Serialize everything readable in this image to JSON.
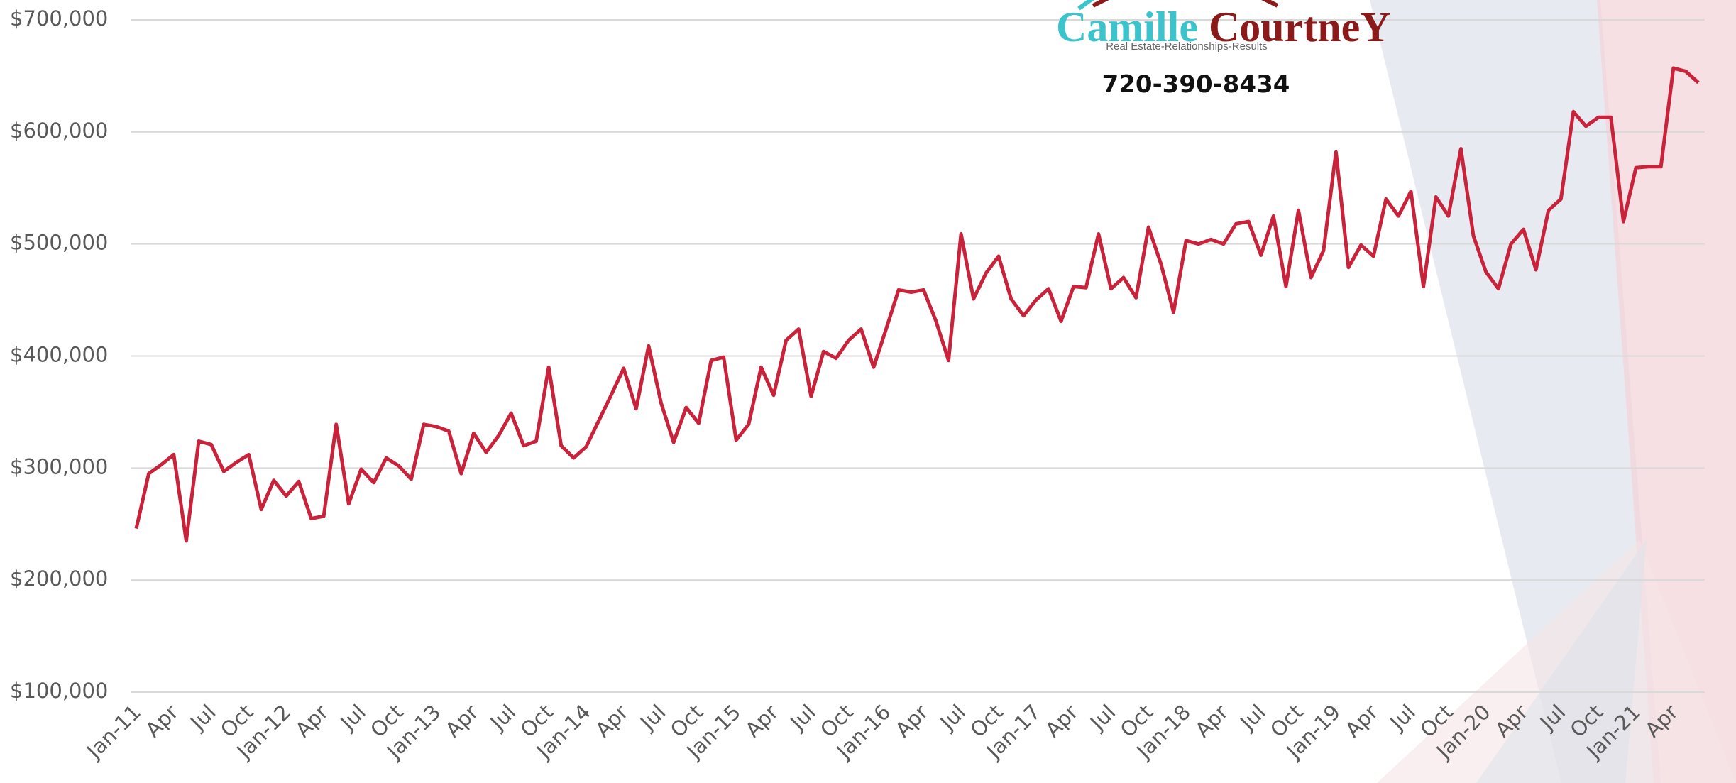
{
  "logo": {
    "name_first": "Camille",
    "name_last": "CourtneY",
    "tagline": "Real Estate-Relationships-Results",
    "phone": "720-390-8434"
  },
  "chart_data": {
    "type": "line",
    "color": "#c8233a",
    "grid": true,
    "ylim": [
      100000,
      700000
    ],
    "yticks": [
      {
        "value": 100000,
        "label": "$100,000"
      },
      {
        "value": 200000,
        "label": "$200,000"
      },
      {
        "value": 300000,
        "label": "$300,000"
      },
      {
        "value": 400000,
        "label": "$400,000"
      },
      {
        "value": 500000,
        "label": "$500,000"
      },
      {
        "value": 600000,
        "label": "$600,000"
      },
      {
        "value": 700000,
        "label": "$700,000"
      }
    ],
    "categories": [
      "Jan-11",
      null,
      null,
      "Apr",
      null,
      null,
      "Jul",
      null,
      null,
      "Oct",
      null,
      null,
      "Jan-12",
      null,
      null,
      "Apr",
      null,
      null,
      "Jul",
      null,
      null,
      "Oct",
      null,
      null,
      "Jan-13",
      null,
      null,
      "Apr",
      null,
      null,
      "Jul",
      null,
      null,
      "Oct",
      null,
      null,
      "Jan-14",
      null,
      null,
      "Apr",
      null,
      null,
      "Jul",
      null,
      null,
      "Oct",
      null,
      null,
      "Jan-15",
      null,
      null,
      "Apr",
      null,
      null,
      "Jul",
      null,
      null,
      "Oct",
      null,
      null,
      "Jan-16",
      null,
      null,
      "Apr",
      null,
      null,
      "Jul",
      null,
      null,
      "Oct",
      null,
      null,
      "Jan-17",
      null,
      null,
      "Apr",
      null,
      null,
      "Jul",
      null,
      null,
      "Oct",
      null,
      null,
      "Jan-18",
      null,
      null,
      "Apr",
      null,
      null,
      "Jul",
      null,
      null,
      "Oct",
      null,
      null,
      "Jan-19",
      null,
      null,
      "Apr",
      null,
      null,
      "Jul",
      null,
      null,
      "Oct",
      null,
      null,
      "Jan-20",
      null,
      null,
      "Apr",
      null,
      null,
      "Jul",
      null,
      null,
      "Oct",
      null,
      null,
      "Jan-21",
      null,
      null,
      "Apr",
      null,
      null
    ],
    "values": [
      246000,
      295000,
      303000,
      312000,
      235000,
      324000,
      321000,
      297000,
      305000,
      312000,
      263000,
      289000,
      275000,
      288000,
      255000,
      257000,
      339000,
      268000,
      299000,
      287000,
      309000,
      302000,
      290000,
      339000,
      337000,
      333000,
      295000,
      331000,
      314000,
      329000,
      349000,
      320000,
      324000,
      390000,
      320000,
      309000,
      319000,
      342000,
      365000,
      389000,
      353000,
      409000,
      358000,
      323000,
      354000,
      340000,
      396000,
      399000,
      325000,
      339000,
      390000,
      365000,
      414000,
      424000,
      364000,
      404000,
      398000,
      414000,
      424000,
      390000,
      424000,
      459000,
      457000,
      459000,
      431000,
      396000,
      509000,
      451000,
      474000,
      489000,
      451000,
      436000,
      450000,
      460000,
      431000,
      462000,
      461000,
      509000,
      460000,
      470000,
      452000,
      515000,
      482000,
      439000,
      503000,
      500000,
      504000,
      500000,
      518000,
      520000,
      490000,
      525000,
      462000,
      530000,
      470000,
      494000,
      582000,
      479000,
      499000,
      489000,
      540000,
      525000,
      547000,
      462000,
      542000,
      525000,
      585000,
      507000,
      475000,
      460000,
      500000,
      513000,
      477000,
      530000,
      540000,
      618000,
      605000,
      613000,
      613000,
      520000,
      568000,
      569000,
      569000,
      657000,
      654000,
      644000
    ]
  }
}
